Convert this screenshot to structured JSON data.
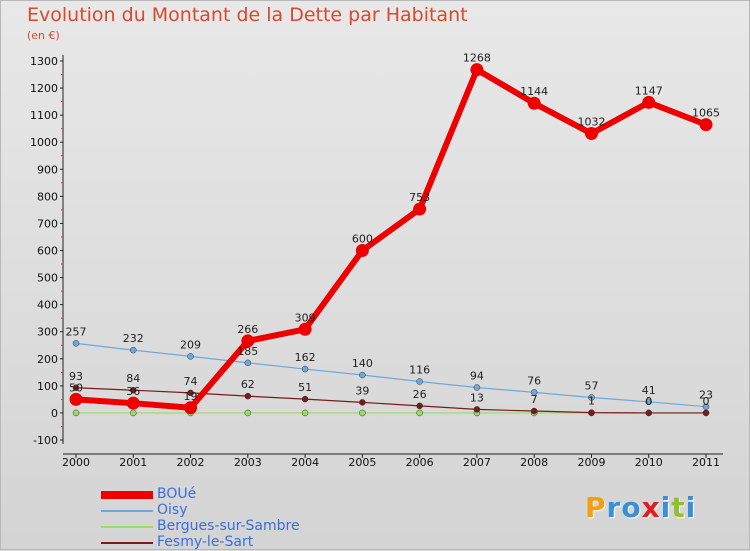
{
  "chart_data": {
    "type": "line",
    "title": "Evolution du Montant de la Dette par Habitant",
    "unit_label": "(en €)",
    "x": [
      "2000",
      "2001",
      "2002",
      "2003",
      "2004",
      "2005",
      "2006",
      "2007",
      "2008",
      "2009",
      "2010",
      "2011"
    ],
    "ylim": [
      -100,
      1300
    ],
    "yticks": [
      -100,
      0,
      100,
      200,
      300,
      400,
      500,
      600,
      700,
      800,
      900,
      1000,
      1100,
      1200,
      1300
    ],
    "grid": false,
    "legend_position": "bottom-left",
    "series": [
      {
        "name": "BOUé",
        "color": "#ee0000",
        "values": [
          50,
          36,
          19,
          266,
          309,
          600,
          753,
          1268,
          1144,
          1032,
          1147,
          1065
        ],
        "labels": [
          "50",
          "36",
          "19",
          "266",
          "309",
          "600",
          "753",
          "1268",
          "1144",
          "1032",
          "1147",
          "1065"
        ]
      },
      {
        "name": "Oisy",
        "color": "#6fa8dc",
        "values": [
          257,
          232,
          209,
          185,
          162,
          140,
          116,
          94,
          76,
          57,
          41,
          23
        ],
        "labels": [
          "257",
          "232",
          "209",
          "185",
          "162",
          "140",
          "116",
          "94",
          "76",
          "57",
          "41",
          "23"
        ]
      },
      {
        "name": "Bergues-sur-Sambre",
        "color": "#99dd66",
        "values": [
          0,
          0,
          0,
          0,
          0,
          0,
          0,
          0,
          0,
          0,
          0,
          0
        ],
        "labels": [
          "",
          "",
          "",
          "",
          "",
          "",
          "",
          "",
          "",
          "",
          "",
          ""
        ]
      },
      {
        "name": "Fesmy-le-Sart",
        "color": "#7a1a1a",
        "values": [
          93,
          84,
          74,
          62,
          51,
          39,
          26,
          13,
          7,
          1,
          0,
          0
        ],
        "labels": [
          "93",
          "84",
          "74",
          "62",
          "51",
          "39",
          "26",
          "13",
          "7",
          "1",
          "0",
          "0"
        ]
      }
    ]
  },
  "logo": {
    "letters": [
      "P",
      "r",
      "o",
      "x",
      "i",
      "t",
      "i"
    ],
    "colors": [
      "#f0a010",
      "#3a8fd8",
      "#3a8fd8",
      "#e02020",
      "#3a8fd8",
      "#90c030",
      "#3a8fd8"
    ]
  }
}
